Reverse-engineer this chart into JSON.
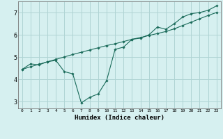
{
  "xlabel": "Humidex (Indice chaleur)",
  "bg_color": "#d6f0f0",
  "grid_color": "#afd4d4",
  "line_color": "#1a6b5a",
  "marker_color": "#1a6b5a",
  "xlim": [
    -0.5,
    23.5
  ],
  "ylim": [
    2.7,
    7.5
  ],
  "ytick_values": [
    3,
    4,
    5,
    6,
    7
  ],
  "series1_x": [
    0,
    1,
    2,
    3,
    4,
    5,
    6,
    7,
    8,
    9,
    10,
    11,
    12,
    13,
    14,
    15,
    16,
    17,
    18,
    19,
    20,
    21,
    22,
    23
  ],
  "series1_y": [
    4.45,
    4.7,
    4.65,
    4.8,
    4.85,
    4.35,
    4.25,
    2.95,
    3.2,
    3.35,
    3.95,
    5.35,
    5.45,
    5.8,
    5.85,
    6.0,
    6.35,
    6.25,
    6.5,
    6.8,
    6.95,
    7.0,
    7.1,
    7.3
  ],
  "series2_x": [
    0,
    1,
    2,
    3,
    4,
    5,
    6,
    7,
    8,
    9,
    10,
    11,
    12,
    13,
    14,
    15,
    16,
    17,
    18,
    19,
    20,
    21,
    22,
    23
  ],
  "series2_y": [
    4.45,
    4.57,
    4.68,
    4.79,
    4.9,
    5.01,
    5.12,
    5.22,
    5.32,
    5.42,
    5.52,
    5.6,
    5.7,
    5.8,
    5.88,
    5.97,
    6.06,
    6.15,
    6.27,
    6.42,
    6.57,
    6.72,
    6.87,
    7.0
  ]
}
